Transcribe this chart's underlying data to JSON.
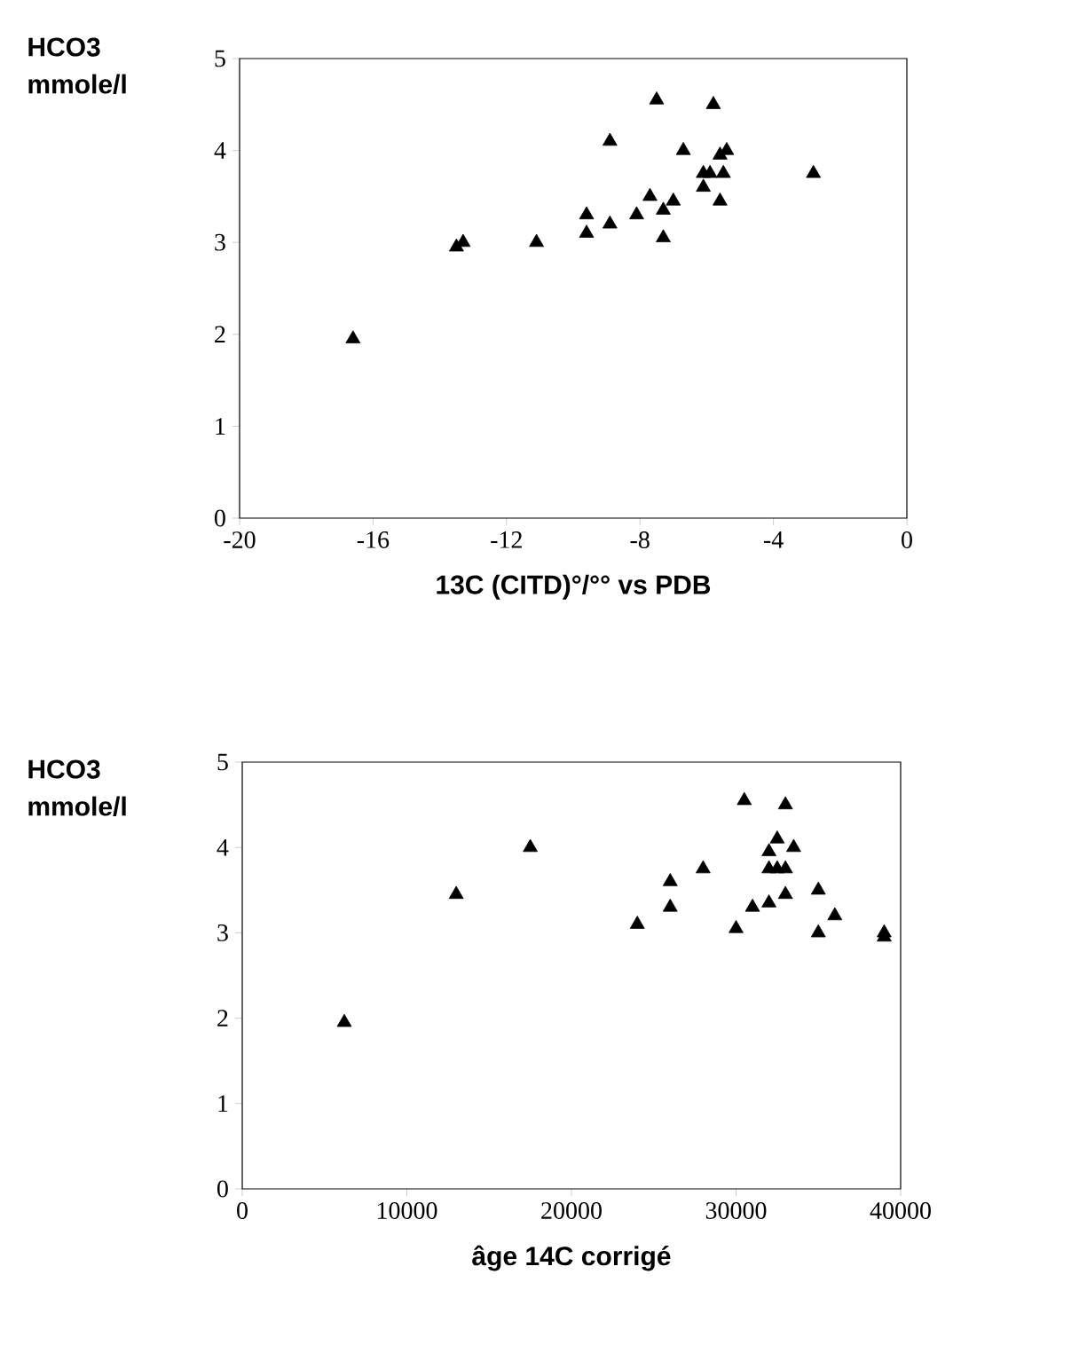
{
  "chart_data": [
    {
      "type": "scatter",
      "xlabel": "13C (CITD)°/°° vs PDB",
      "ylabel": "HCO3 mmole/l",
      "marker": "triangle",
      "grid": false,
      "xlim": [
        -20,
        0
      ],
      "xticks": [
        -20,
        -16,
        -12,
        -8,
        -4,
        0
      ],
      "ylim": [
        0,
        5
      ],
      "yticks": [
        0,
        1,
        2,
        3,
        4,
        5
      ],
      "series": [
        {
          "color": "#000000",
          "x": [
            -16.6,
            -13.5,
            -13.3,
            -11.1,
            -9.6,
            -9.6,
            -8.9,
            -8.9,
            -8.1,
            -7.7,
            -7.5,
            -7.3,
            -7.3,
            -7.0,
            -6.7,
            -6.1,
            -6.1,
            -5.9,
            -5.8,
            -5.6,
            -5.6,
            -5.5,
            -5.4,
            -2.8
          ],
          "values": [
            1.95,
            2.95,
            3.0,
            3.0,
            3.1,
            3.3,
            4.1,
            3.2,
            3.3,
            3.5,
            4.55,
            3.35,
            3.05,
            3.45,
            4.0,
            3.75,
            3.6,
            3.75,
            4.5,
            3.95,
            3.45,
            3.75,
            4.0,
            3.75
          ]
        }
      ]
    },
    {
      "type": "scatter",
      "xlabel": "âge 14C corrigé",
      "ylabel": "HCO3 mmole/l",
      "marker": "triangle",
      "grid": false,
      "xlim": [
        0,
        40000
      ],
      "xticks": [
        0,
        10000,
        20000,
        30000,
        40000
      ],
      "ylim": [
        0,
        5
      ],
      "yticks": [
        0,
        1,
        2,
        3,
        4,
        5
      ],
      "series": [
        {
          "color": "#000000",
          "x": [
            6200,
            13000,
            17500,
            24000,
            26000,
            26000,
            28000,
            30000,
            30500,
            31000,
            32000,
            32000,
            32000,
            32500,
            32500,
            33000,
            33000,
            33000,
            33500,
            35000,
            35000,
            36000,
            39000,
            39000
          ],
          "values": [
            1.95,
            3.45,
            4.0,
            3.1,
            3.6,
            3.3,
            3.75,
            3.05,
            4.55,
            3.3,
            3.35,
            3.95,
            3.75,
            4.1,
            3.75,
            4.5,
            3.75,
            3.45,
            4.0,
            3.5,
            3.0,
            3.2,
            3.0,
            2.95
          ]
        }
      ]
    }
  ]
}
